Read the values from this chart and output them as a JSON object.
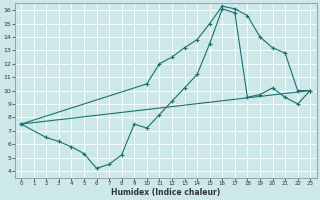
{
  "xlabel": "Humidex (Indice chaleur)",
  "bg_color": "#cce8e8",
  "line_color": "#1a7070",
  "grid_color": "#b8d8d8",
  "xlim": [
    -0.5,
    23.5
  ],
  "ylim": [
    3.5,
    16.5
  ],
  "xticks": [
    0,
    1,
    2,
    3,
    4,
    5,
    6,
    7,
    8,
    9,
    10,
    11,
    12,
    13,
    14,
    15,
    16,
    17,
    18,
    19,
    20,
    21,
    22,
    23
  ],
  "yticks": [
    4,
    5,
    6,
    7,
    8,
    9,
    10,
    11,
    12,
    13,
    14,
    15,
    16
  ],
  "curve1_x": [
    0,
    10,
    11,
    12,
    13,
    14,
    15,
    16,
    17,
    18,
    19,
    20,
    21,
    22,
    23
  ],
  "curve1_y": [
    7.5,
    10.5,
    12.0,
    12.5,
    13.2,
    13.8,
    15.0,
    16.3,
    16.1,
    15.6,
    14.0,
    13.2,
    12.8,
    10.0,
    10.0
  ],
  "curve2_x": [
    0,
    2,
    3,
    4,
    5,
    6,
    7,
    8,
    9,
    10,
    11,
    12,
    13,
    14,
    15,
    16,
    17,
    18,
    19,
    20,
    21,
    22,
    23
  ],
  "curve2_y": [
    7.5,
    6.5,
    6.2,
    5.8,
    5.3,
    4.2,
    4.5,
    5.2,
    7.5,
    7.2,
    8.2,
    9.2,
    10.2,
    11.2,
    13.5,
    16.1,
    15.8,
    9.5,
    9.7,
    10.2,
    9.5,
    9.0,
    10.0
  ],
  "curve3_x": [
    0,
    23
  ],
  "curve3_y": [
    7.5,
    10.0
  ]
}
